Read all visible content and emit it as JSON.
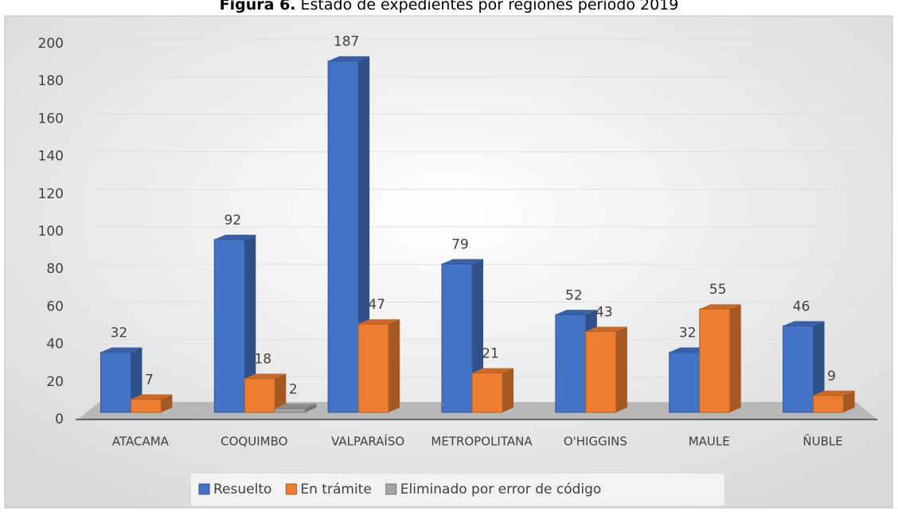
{
  "chart_data": {
    "type": "bar3d",
    "title_label": "Figura 6.",
    "title": "Estado de expedientes por regiones período 2019",
    "categories": [
      "ATACAMA",
      "COQUIMBO",
      "VALPARAÍSO",
      "METROPOLITANA",
      "O'HIGGINS",
      "MAULE",
      "ÑUBLE"
    ],
    "series": [
      {
        "name": "Resuelto",
        "color": "#4472c4",
        "values": [
          32,
          92,
          187,
          79,
          52,
          32,
          46
        ]
      },
      {
        "name": "En trámite",
        "color": "#ed7d31",
        "values": [
          7,
          18,
          47,
          21,
          43,
          55,
          9
        ]
      },
      {
        "name": "Eliminado por error de código",
        "color": "#a5a5a5",
        "values": [
          null,
          2,
          null,
          null,
          null,
          null,
          null
        ]
      }
    ],
    "ylim": [
      0,
      200
    ],
    "yticks": [
      0,
      20,
      40,
      60,
      80,
      100,
      120,
      140,
      160,
      180,
      200
    ],
    "grid": true,
    "legend": "bottom"
  }
}
